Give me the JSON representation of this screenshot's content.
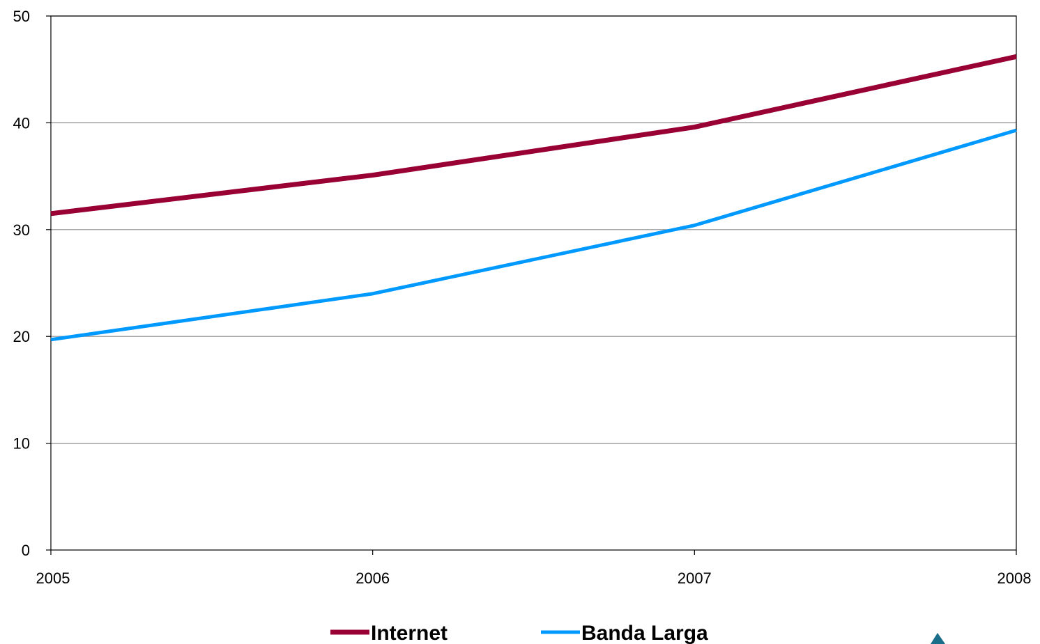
{
  "chart_data": {
    "type": "line",
    "title": "",
    "xlabel": "",
    "ylabel": "",
    "categories": [
      "2005",
      "2006",
      "2007",
      "2008"
    ],
    "ylim": [
      0,
      50
    ],
    "yticks": [
      "0",
      "10",
      "20",
      "30",
      "40",
      "50"
    ],
    "grid": true,
    "legend_position": "bottom",
    "series": [
      {
        "name": "Internet",
        "color": "#990033",
        "values": [
          31.5,
          35.1,
          39.6,
          46.2
        ]
      },
      {
        "name": "Banda Larga",
        "color": "#0099ff",
        "values": [
          19.7,
          24.0,
          30.4,
          39.3
        ]
      }
    ]
  },
  "decoration": {
    "corner_marker_icon": "triangle-up-icon",
    "corner_marker_color": "#1a6e8a"
  }
}
